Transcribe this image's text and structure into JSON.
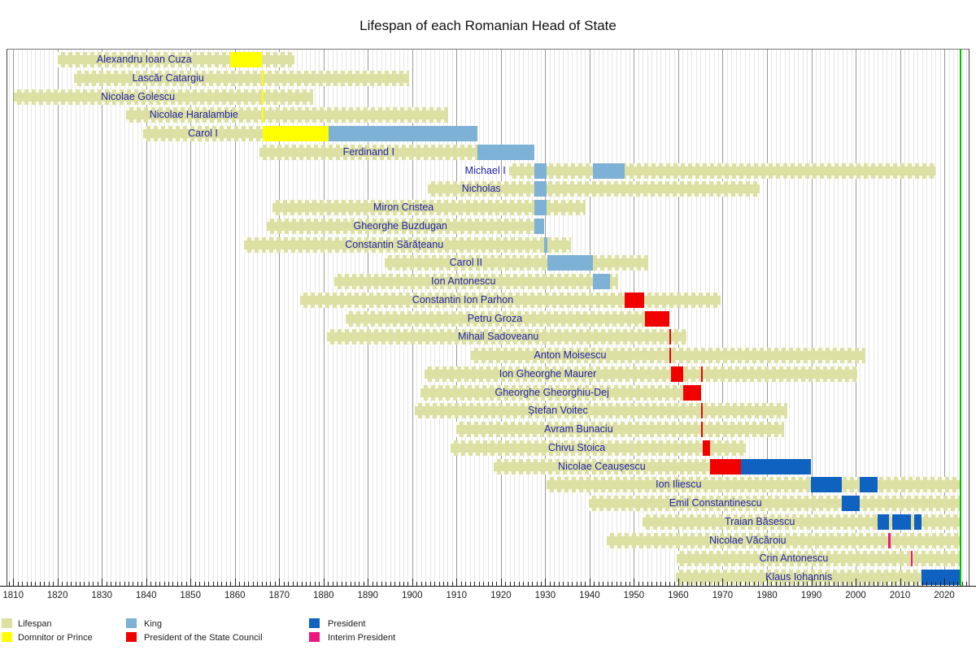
{
  "title": "Lifespan of each Romanian Head of State",
  "colors": {
    "lifespan": "#dce0a3",
    "domnitor": "#ffff00",
    "king": "#7eb1d6",
    "state_council": "#f20000",
    "president": "#0f62c0",
    "interim": "#ed1782",
    "present_line": "#00c400",
    "name_text": "#2222aa",
    "grid_minor": "#e7e7e7",
    "grid_major": "#9a9a9a"
  },
  "legend": [
    {
      "label": "Lifespan",
      "color_key": "lifespan",
      "col": 0,
      "row": 0
    },
    {
      "label": "Domnitor or Prince",
      "color_key": "domnitor",
      "col": 0,
      "row": 1
    },
    {
      "label": "King",
      "color_key": "king",
      "col": 1,
      "row": 0
    },
    {
      "label": "President of the State Council",
      "color_key": "state_council",
      "col": 1,
      "row": 1
    },
    {
      "label": "President",
      "color_key": "president",
      "col": 2,
      "row": 0
    },
    {
      "label": "Interim President",
      "color_key": "interim",
      "col": 2,
      "row": 1
    }
  ],
  "axis": {
    "domain_min": 1808.5,
    "domain_max": 2025.5,
    "major_tick_start": 1810,
    "major_tick_end": 2020,
    "major_tick_step": 10,
    "minor_tick_step": 1,
    "tick_labels": [
      "1810",
      "1820",
      "1830",
      "1840",
      "1850",
      "1860",
      "1870",
      "1880",
      "1890",
      "1900",
      "1910",
      "1920",
      "1930",
      "1940",
      "1950",
      "1960",
      "1970",
      "1980",
      "1990",
      "2000",
      "2010",
      "2020"
    ]
  },
  "present_year": 2023.5,
  "chart_data": {
    "type": "bar",
    "orientation": "horizontal-timeline",
    "title": "Lifespan of each Romanian Head of State",
    "x_range": [
      1808.5,
      2025.5
    ],
    "legend_position": "bottom",
    "grid": true,
    "people": [
      {
        "name": "Alexandru Ioan Cuza",
        "born": 1820.1,
        "died": 1873.4,
        "terms": [
          {
            "role": "domnitor",
            "start": 1859.0,
            "end": 1866.15
          }
        ]
      },
      {
        "name": "Lascăr Catargiu",
        "born": 1823.8,
        "died": 1899.3,
        "terms": [
          {
            "role": "domnitor",
            "start": 1866.1,
            "end": 1866.55
          }
        ]
      },
      {
        "name": "Nicolae Golescu",
        "born": 1810.2,
        "died": 1877.6,
        "terms": [
          {
            "role": "domnitor",
            "start": 1866.1,
            "end": 1866.55
          }
        ]
      },
      {
        "name": "Nicolae Haralambie",
        "born": 1835.4,
        "died": 1908.2,
        "terms": [
          {
            "role": "domnitor",
            "start": 1866.1,
            "end": 1866.55
          }
        ]
      },
      {
        "name": "Carol I",
        "born": 1839.3,
        "died": 1914.75,
        "terms": [
          {
            "role": "domnitor",
            "start": 1866.3,
            "end": 1881.2
          },
          {
            "role": "king",
            "start": 1881.2,
            "end": 1914.75
          }
        ]
      },
      {
        "name": "Ferdinand I",
        "born": 1865.6,
        "died": 1927.55,
        "terms": [
          {
            "role": "king",
            "start": 1914.75,
            "end": 1927.55
          }
        ]
      },
      {
        "name": "Michael I",
        "born": 1921.8,
        "died": 2017.9,
        "terms": [
          {
            "role": "king",
            "start": 1927.55,
            "end": 1930.4
          },
          {
            "role": "king",
            "start": 1940.7,
            "end": 1948.0
          }
        ]
      },
      {
        "name": "Nicholas",
        "born": 1903.6,
        "died": 1978.4,
        "terms": [
          {
            "role": "king",
            "start": 1927.55,
            "end": 1930.4
          }
        ]
      },
      {
        "name": "Miron Cristea",
        "born": 1868.5,
        "died": 1939.2,
        "terms": [
          {
            "role": "king",
            "start": 1927.55,
            "end": 1930.4
          }
        ]
      },
      {
        "name": "Gheorghe Buzdugan",
        "born": 1867.1,
        "died": 1929.8,
        "terms": [
          {
            "role": "king",
            "start": 1927.55,
            "end": 1929.8
          }
        ]
      },
      {
        "name": "Constantin Sărățeanu",
        "born": 1862.1,
        "died": 1935.8,
        "terms": [
          {
            "role": "king",
            "start": 1929.8,
            "end": 1930.4
          }
        ]
      },
      {
        "name": "Carol II",
        "born": 1893.8,
        "died": 1953.3,
        "terms": [
          {
            "role": "king",
            "start": 1930.4,
            "end": 1940.7
          }
        ]
      },
      {
        "name": "Ion Antonescu",
        "born": 1882.4,
        "died": 1946.4,
        "terms": [
          {
            "role": "king",
            "start": 1940.7,
            "end": 1944.65
          }
        ]
      },
      {
        "name": "Constantin Ion Parhon",
        "born": 1874.8,
        "died": 1969.6,
        "terms": [
          {
            "role": "state_council",
            "start": 1948.0,
            "end": 1952.4
          }
        ]
      },
      {
        "name": "Petru Groza",
        "born": 1884.9,
        "died": 1958.05,
        "terms": [
          {
            "role": "state_council",
            "start": 1952.4,
            "end": 1958.05
          }
        ]
      },
      {
        "name": "Mihail Sadoveanu",
        "born": 1880.8,
        "died": 1961.8,
        "terms": [
          {
            "role": "state_council",
            "start": 1958.05,
            "end": 1958.45
          }
        ]
      },
      {
        "name": "Anton Moisescu",
        "born": 1913.2,
        "died": 2002.3,
        "terms": [
          {
            "role": "state_council",
            "start": 1958.05,
            "end": 1958.45
          }
        ]
      },
      {
        "name": "Ion Gheorghe Maurer",
        "born": 1902.7,
        "died": 2000.3,
        "terms": [
          {
            "role": "state_council",
            "start": 1958.45,
            "end": 1961.2
          },
          {
            "role": "state_council",
            "start": 1965.2,
            "end": 1965.6
          }
        ]
      },
      {
        "name": "Gheorghe Gheorghiu-Dej",
        "born": 1901.85,
        "died": 1965.2,
        "terms": [
          {
            "role": "state_council",
            "start": 1961.2,
            "end": 1965.2
          }
        ]
      },
      {
        "name": "Ștefan Voitec",
        "born": 1900.5,
        "died": 1984.6,
        "terms": [
          {
            "role": "state_council",
            "start": 1965.2,
            "end": 1965.6
          }
        ]
      },
      {
        "name": "Avram Bunaciu",
        "born": 1909.85,
        "died": 1983.8,
        "terms": [
          {
            "role": "state_council",
            "start": 1965.2,
            "end": 1965.6
          }
        ]
      },
      {
        "name": "Chivu Stoica",
        "born": 1908.6,
        "died": 1975.3,
        "terms": [
          {
            "role": "state_council",
            "start": 1965.6,
            "end": 1967.2
          }
        ]
      },
      {
        "name": "Nicolae Ceaușescu",
        "born": 1918.3,
        "died": 1990.0,
        "terms": [
          {
            "role": "state_council",
            "start": 1967.2,
            "end": 1974.2
          },
          {
            "role": "president",
            "start": 1974.2,
            "end": 1990.0
          }
        ]
      },
      {
        "name": "Ion Iliescu",
        "born": 1930.2,
        "died": null,
        "terms": [
          {
            "role": "president",
            "start": 1989.95,
            "end": 1996.9
          },
          {
            "role": "president",
            "start": 2000.95,
            "end": 2004.9
          }
        ]
      },
      {
        "name": "Emil Constantinescu",
        "born": 1939.9,
        "died": null,
        "terms": [
          {
            "role": "president",
            "start": 1996.9,
            "end": 2000.95
          }
        ]
      },
      {
        "name": "Traian Băsescu",
        "born": 1951.9,
        "died": null,
        "terms": [
          {
            "role": "president",
            "start": 2004.9,
            "end": 2007.45
          },
          {
            "role": "president",
            "start": 2008.3,
            "end": 2012.4
          },
          {
            "role": "president",
            "start": 2013.2,
            "end": 2014.9
          }
        ]
      },
      {
        "name": "Nicolae Văcăroiu",
        "born": 1943.9,
        "died": null,
        "terms": [
          {
            "role": "interim",
            "start": 2007.45,
            "end": 2007.9
          }
        ]
      },
      {
        "name": "Crin Antonescu",
        "born": 1959.7,
        "died": null,
        "terms": [
          {
            "role": "interim",
            "start": 2012.4,
            "end": 2012.85
          }
        ]
      },
      {
        "name": "Klaus Iohannis",
        "born": 1959.45,
        "died": null,
        "terms": [
          {
            "role": "president",
            "start": 2014.9,
            "end": null
          }
        ]
      }
    ]
  }
}
